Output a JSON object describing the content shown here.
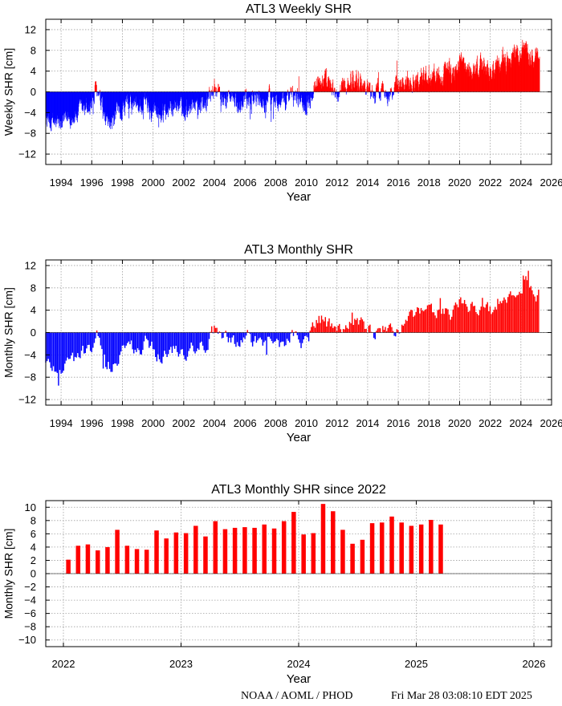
{
  "footer": {
    "credit": "NOAA / AOML / PHOD",
    "timestamp": "Fri Mar 28 03:08:10 EDT 2025"
  },
  "colors": {
    "positive": "#ff0000",
    "negative": "#0000ff",
    "grid": "#a0a0a0",
    "frame": "#000000"
  },
  "chart_data": [
    {
      "type": "bar",
      "title": "ATL3 Weekly SHR",
      "xlabel": "Year",
      "ylabel": "Weekly SHR [cm]",
      "xlim": [
        1993,
        2026
      ],
      "ylim": [
        -14,
        14
      ],
      "xticks": [
        1994,
        1996,
        1998,
        2000,
        2002,
        2004,
        2006,
        2008,
        2010,
        2012,
        2014,
        2016,
        2018,
        2020,
        2022,
        2024,
        2026
      ],
      "yticks": [
        -12,
        -8,
        -4,
        0,
        4,
        8,
        12
      ],
      "grid": true,
      "step": 0.0192,
      "series_note": "weekly values; colored red when positive, blue when negative",
      "x_start": 1993.0,
      "x_end": 2025.22,
      "envelope": [
        [
          1993.0,
          -5.5
        ],
        [
          1993.5,
          -6.0
        ],
        [
          1994.0,
          -6.5
        ],
        [
          1994.5,
          -5.0
        ],
        [
          1995.0,
          -4.5
        ],
        [
          1995.5,
          -3.5
        ],
        [
          1996.0,
          -2.5
        ],
        [
          1996.3,
          0.5
        ],
        [
          1996.6,
          -3.0
        ],
        [
          1997.0,
          -7.0
        ],
        [
          1997.5,
          -5.0
        ],
        [
          1998.0,
          -3.5
        ],
        [
          1998.5,
          -2.5
        ],
        [
          1999.0,
          -3.0
        ],
        [
          1999.5,
          -2.0
        ],
        [
          2000.0,
          -3.0
        ],
        [
          2000.5,
          -4.5
        ],
        [
          2001.0,
          -3.0
        ],
        [
          2001.5,
          -2.5
        ],
        [
          2002.0,
          -4.0
        ],
        [
          2002.5,
          -2.0
        ],
        [
          2003.0,
          -2.5
        ],
        [
          2003.5,
          -2.0
        ],
        [
          2004.0,
          0.8
        ],
        [
          2004.5,
          -1.5
        ],
        [
          2005.0,
          -1.0
        ],
        [
          2005.5,
          -3.0
        ],
        [
          2006.0,
          -0.5
        ],
        [
          2006.5,
          -1.0
        ],
        [
          2007.0,
          -2.0
        ],
        [
          2007.5,
          -1.5
        ],
        [
          2008.0,
          -1.5
        ],
        [
          2008.5,
          -2.5
        ],
        [
          2009.0,
          -0.5
        ],
        [
          2009.5,
          -1.0
        ],
        [
          2010.0,
          -2.0
        ],
        [
          2010.5,
          1.5
        ],
        [
          2011.0,
          2.5
        ],
        [
          2011.5,
          1.0
        ],
        [
          2012.0,
          -1.0
        ],
        [
          2012.5,
          1.5
        ],
        [
          2013.0,
          2.5
        ],
        [
          2013.5,
          2.0
        ],
        [
          2014.0,
          1.0
        ],
        [
          2014.5,
          -0.5
        ],
        [
          2015.0,
          1.5
        ],
        [
          2015.5,
          -0.5
        ],
        [
          2016.0,
          1.0
        ],
        [
          2016.5,
          2.5
        ],
        [
          2017.0,
          2.5
        ],
        [
          2017.5,
          3.0
        ],
        [
          2018.0,
          3.5
        ],
        [
          2018.5,
          3.5
        ],
        [
          2019.0,
          4.0
        ],
        [
          2019.5,
          3.5
        ],
        [
          2020.0,
          6.0
        ],
        [
          2020.5,
          3.5
        ],
        [
          2021.0,
          4.5
        ],
        [
          2021.5,
          5.5
        ],
        [
          2022.0,
          3.5
        ],
        [
          2022.5,
          5.5
        ],
        [
          2023.0,
          6.0
        ],
        [
          2023.5,
          6.5
        ],
        [
          2024.0,
          7.5
        ],
        [
          2024.3,
          9.5
        ],
        [
          2024.7,
          6.5
        ],
        [
          2025.0,
          6.5
        ],
        [
          2025.22,
          7.0
        ]
      ],
      "amplitude": 1.6
    },
    {
      "type": "bar",
      "title": "ATL3 Monthly SHR",
      "xlabel": "Year",
      "ylabel": "Monthly SHR [cm]",
      "xlim": [
        1993,
        2026
      ],
      "ylim": [
        -13,
        13
      ],
      "xticks": [
        1994,
        1996,
        1998,
        2000,
        2002,
        2004,
        2006,
        2008,
        2010,
        2012,
        2014,
        2016,
        2018,
        2020,
        2022,
        2024,
        2026
      ],
      "yticks": [
        -12,
        -8,
        -4,
        0,
        4,
        8,
        12
      ],
      "grid": true,
      "step": 0.0833,
      "series_note": "monthly values; colored red when positive, blue when negative",
      "x_start": 1993.0,
      "x_end": 2025.17,
      "envelope": [
        [
          1993.0,
          -5.5
        ],
        [
          1993.5,
          -6.0
        ],
        [
          1994.0,
          -6.2
        ],
        [
          1994.5,
          -5.0
        ],
        [
          1995.0,
          -4.5
        ],
        [
          1995.5,
          -3.5
        ],
        [
          1996.0,
          -2.5
        ],
        [
          1996.3,
          0.2
        ],
        [
          1996.6,
          -3.5
        ],
        [
          1997.0,
          -7.0
        ],
        [
          1997.5,
          -5.0
        ],
        [
          1998.0,
          -3.5
        ],
        [
          1998.5,
          -2.5
        ],
        [
          1999.0,
          -3.0
        ],
        [
          1999.5,
          -2.0
        ],
        [
          2000.0,
          -3.0
        ],
        [
          2000.5,
          -4.5
        ],
        [
          2001.0,
          -3.0
        ],
        [
          2001.5,
          -2.5
        ],
        [
          2002.0,
          -4.0
        ],
        [
          2002.5,
          -2.0
        ],
        [
          2003.0,
          -2.5
        ],
        [
          2003.5,
          -2.0
        ],
        [
          2004.0,
          0.3
        ],
        [
          2004.5,
          -1.5
        ],
        [
          2005.0,
          -1.0
        ],
        [
          2005.5,
          -3.0
        ],
        [
          2006.0,
          -0.5
        ],
        [
          2006.5,
          -1.0
        ],
        [
          2007.0,
          -2.0
        ],
        [
          2007.5,
          -1.5
        ],
        [
          2008.0,
          -1.5
        ],
        [
          2008.5,
          -2.0
        ],
        [
          2009.0,
          -0.5
        ],
        [
          2009.5,
          -1.0
        ],
        [
          2010.0,
          -2.0
        ],
        [
          2010.5,
          1.5
        ],
        [
          2011.0,
          2.0
        ],
        [
          2011.5,
          1.0
        ],
        [
          2012.0,
          -0.5
        ],
        [
          2012.5,
          1.5
        ],
        [
          2013.0,
          2.0
        ],
        [
          2013.5,
          2.0
        ],
        [
          2014.0,
          1.0
        ],
        [
          2014.5,
          -0.5
        ],
        [
          2015.0,
          1.5
        ],
        [
          2015.5,
          -0.5
        ],
        [
          2016.0,
          1.0
        ],
        [
          2016.5,
          2.5
        ],
        [
          2017.0,
          2.5
        ],
        [
          2017.5,
          3.0
        ],
        [
          2018.0,
          3.5
        ],
        [
          2018.5,
          3.5
        ],
        [
          2019.0,
          4.0
        ],
        [
          2019.5,
          3.5
        ],
        [
          2020.0,
          6.5
        ],
        [
          2020.5,
          3.5
        ],
        [
          2021.0,
          4.5
        ],
        [
          2021.5,
          5.5
        ],
        [
          2022.0,
          3.5
        ],
        [
          2022.5,
          5.5
        ],
        [
          2023.0,
          6.0
        ],
        [
          2023.5,
          6.5
        ],
        [
          2024.0,
          7.5
        ],
        [
          2024.3,
          9.0
        ],
        [
          2024.7,
          6.5
        ],
        [
          2025.0,
          7.0
        ],
        [
          2025.17,
          7.5
        ]
      ],
      "amplitude": 1.2
    },
    {
      "type": "bar",
      "title": "ATL3 Monthly SHR since 2022",
      "xlabel": "Year",
      "ylabel": "Monthly SHR [cm]",
      "xlim": [
        2021.85,
        2026.15
      ],
      "ylim": [
        -11,
        11
      ],
      "xticks": [
        2022,
        2023,
        2024,
        2025,
        2026
      ],
      "yticks": [
        -10,
        -8,
        -6,
        -4,
        -2,
        0,
        2,
        4,
        6,
        8,
        10
      ],
      "grid": true,
      "x": [
        2022.042,
        2022.125,
        2022.208,
        2022.292,
        2022.375,
        2022.458,
        2022.542,
        2022.625,
        2022.708,
        2022.792,
        2022.875,
        2022.958,
        2023.042,
        2023.125,
        2023.208,
        2023.292,
        2023.375,
        2023.458,
        2023.542,
        2023.625,
        2023.708,
        2023.792,
        2023.875,
        2023.958,
        2024.042,
        2024.125,
        2024.208,
        2024.292,
        2024.375,
        2024.458,
        2024.542,
        2024.625,
        2024.708,
        2024.792,
        2024.875,
        2024.958,
        2025.042,
        2025.125,
        2025.208
      ],
      "values": [
        2.1,
        4.2,
        4.4,
        3.5,
        4.0,
        6.6,
        4.2,
        3.7,
        3.6,
        6.5,
        5.3,
        6.2,
        6.1,
        7.2,
        5.6,
        7.9,
        6.7,
        6.9,
        7.0,
        6.9,
        7.4,
        6.8,
        7.9,
        9.3,
        5.9,
        6.1,
        10.5,
        9.4,
        6.6,
        4.5,
        5.1,
        7.6,
        7.7,
        8.6,
        7.7,
        7.2,
        7.4,
        8.1,
        7.4
      ]
    }
  ]
}
